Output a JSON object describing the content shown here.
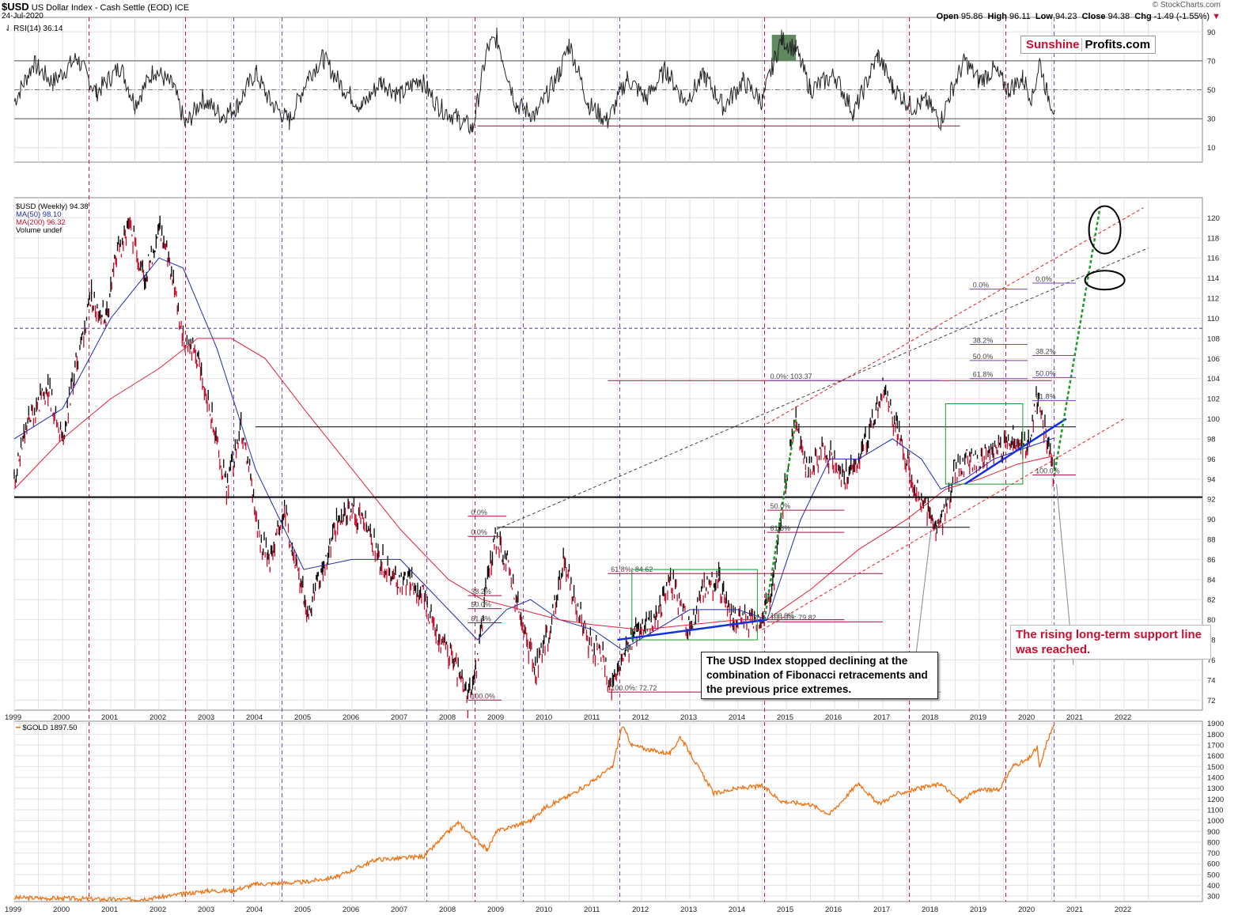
{
  "header": {
    "symbol": "$USD",
    "name": "US Dollar Index - Cash Settle (EOD)",
    "exchange": "ICE",
    "date": "24-Jul-2020",
    "open_label": "Open",
    "open": "95.86",
    "high_label": "High",
    "high": "96.11",
    "low_label": "Low",
    "low": "94.23",
    "close_label": "Close",
    "close": "94.38",
    "chg_label": "Chg",
    "chg": "-1.49 (-1.55%)",
    "copyright": "© StockCharts.com"
  },
  "logo": {
    "part1": "Sunshine",
    "part2": "Profits.com"
  },
  "legend": {
    "rsi": "RSI(14) 36.14",
    "usd": "$USD (Weekly) 94.38",
    "ma50": "MA(50) 98.10",
    "ma200": "MA(200) 96.32",
    "volume": "Volume undef",
    "gold": "$GOLD 1897.50"
  },
  "colors": {
    "usd_candle": "#000000",
    "usd_down": "#c8102e",
    "ma50": "#1f2bb0",
    "ma200": "#e0203a",
    "gold": "#f07010",
    "rsi_fill": "#5f8a5f",
    "vline_red": "#c8102e",
    "vline_purple": "#7a3fb8",
    "trend_blue": "#1030e0",
    "trend_red_dash": "#e02020",
    "trend_green_dash": "#1a9a2a"
  },
  "callouts": {
    "fib_note": "The USD Index stopped declining at the combination of Fibonacci retracements and the previous price extremes.",
    "support_note": "The rising long-term support line was reached."
  },
  "chart_data": [
    {
      "type": "line",
      "title": "RSI(14) 36.14",
      "series": [
        {
          "name": "RSI(14)",
          "values_note": ""
        }
      ],
      "ylim": [
        0,
        100
      ],
      "y_ticks": [
        "10",
        "30",
        "50",
        "70",
        "90"
      ],
      "reference_lines": [
        30,
        50,
        70
      ],
      "x_ticks": [
        "1999",
        "2000",
        "2001",
        "2002",
        "2003",
        "2004",
        "2005",
        "2006",
        "2007",
        "2008",
        "2009",
        "2010",
        "2011",
        "2012",
        "2013",
        "2014",
        "2015",
        "2016",
        "2017",
        "2018",
        "2019",
        "2020",
        "2021",
        "2022"
      ],
      "points": [
        [
          1999.0,
          42
        ],
        [
          1999.4,
          68
        ],
        [
          1999.8,
          55
        ],
        [
          2000.3,
          72
        ],
        [
          2000.7,
          48
        ],
        [
          2001.2,
          66
        ],
        [
          2001.5,
          40
        ],
        [
          2001.9,
          64
        ],
        [
          2002.3,
          52
        ],
        [
          2002.55,
          25
        ],
        [
          2002.9,
          44
        ],
        [
          2003.3,
          32
        ],
        [
          2003.6,
          38
        ],
        [
          2004.0,
          62
        ],
        [
          2004.3,
          42
        ],
        [
          2004.7,
          28
        ],
        [
          2005.1,
          60
        ],
        [
          2005.4,
          72
        ],
        [
          2005.8,
          52
        ],
        [
          2006.2,
          38
        ],
        [
          2006.6,
          56
        ],
        [
          2007.0,
          46
        ],
        [
          2007.4,
          58
        ],
        [
          2007.8,
          38
        ],
        [
          2008.2,
          30
        ],
        [
          2008.5,
          23
        ],
        [
          2008.8,
          78
        ],
        [
          2009.0,
          86
        ],
        [
          2009.4,
          40
        ],
        [
          2009.8,
          32
        ],
        [
          2010.3,
          62
        ],
        [
          2010.5,
          82
        ],
        [
          2010.9,
          40
        ],
        [
          2011.3,
          28
        ],
        [
          2011.7,
          58
        ],
        [
          2012.1,
          44
        ],
        [
          2012.5,
          64
        ],
        [
          2012.9,
          42
        ],
        [
          2013.3,
          60
        ],
        [
          2013.7,
          38
        ],
        [
          2014.1,
          56
        ],
        [
          2014.5,
          42
        ],
        [
          2014.7,
          65
        ],
        [
          2014.9,
          85
        ],
        [
          2015.2,
          78
        ],
        [
          2015.5,
          50
        ],
        [
          2016.0,
          60
        ],
        [
          2016.4,
          34
        ],
        [
          2016.9,
          74
        ],
        [
          2017.2,
          52
        ],
        [
          2017.6,
          38
        ],
        [
          2017.9,
          42
        ],
        [
          2018.2,
          28
        ],
        [
          2018.4,
          48
        ],
        [
          2018.7,
          70
        ],
        [
          2019.0,
          56
        ],
        [
          2019.3,
          64
        ],
        [
          2019.6,
          50
        ],
        [
          2019.9,
          58
        ],
        [
          2020.1,
          44
        ],
        [
          2020.25,
          70
        ],
        [
          2020.4,
          48
        ],
        [
          2020.56,
          36
        ]
      ]
    },
    {
      "type": "line",
      "title": "$USD (Weekly) 94.38",
      "series": [
        {
          "name": "$USD (Weekly)",
          "last": 94.38
        },
        {
          "name": "MA(50)",
          "last": 98.1
        },
        {
          "name": "MA(200)",
          "last": 96.32
        }
      ],
      "ylim": [
        71,
        122
      ],
      "y_ticks": [
        "72",
        "74",
        "76",
        "78",
        "80",
        "82",
        "84",
        "86",
        "88",
        "90",
        "92",
        "94",
        "96",
        "98",
        "100",
        "102",
        "104",
        "106",
        "108",
        "110",
        "112",
        "114",
        "116",
        "118",
        "120"
      ],
      "price_path": [
        [
          1999.0,
          94
        ],
        [
          1999.3,
          100
        ],
        [
          1999.7,
          103
        ],
        [
          2000.0,
          98
        ],
        [
          2000.3,
          106
        ],
        [
          2000.6,
          112
        ],
        [
          2000.9,
          110
        ],
        [
          2001.1,
          116
        ],
        [
          2001.4,
          119
        ],
        [
          2001.7,
          114
        ],
        [
          2002.0,
          119
        ],
        [
          2002.2,
          116
        ],
        [
          2002.5,
          108
        ],
        [
          2002.8,
          106
        ],
        [
          2003.1,
          100
        ],
        [
          2003.4,
          93
        ],
        [
          2003.7,
          99
        ],
        [
          2003.9,
          94
        ],
        [
          2004.1,
          88
        ],
        [
          2004.3,
          86
        ],
        [
          2004.6,
          91
        ],
        [
          2004.9,
          84
        ],
        [
          2005.1,
          81
        ],
        [
          2005.4,
          85
        ],
        [
          2005.7,
          90
        ],
        [
          2006.0,
          91
        ],
        [
          2006.3,
          89
        ],
        [
          2006.6,
          86
        ],
        [
          2006.9,
          84
        ],
        [
          2007.2,
          84
        ],
        [
          2007.5,
          82
        ],
        [
          2007.8,
          78
        ],
        [
          2008.1,
          76
        ],
        [
          2008.4,
          72
        ],
        [
          2008.6,
          76
        ],
        [
          2008.75,
          82
        ],
        [
          2008.95,
          88
        ],
        [
          2009.2,
          86
        ],
        [
          2009.5,
          80
        ],
        [
          2009.8,
          75
        ],
        [
          2010.1,
          79
        ],
        [
          2010.4,
          86
        ],
        [
          2010.6,
          82
        ],
        [
          2010.9,
          78
        ],
        [
          2011.2,
          76
        ],
        [
          2011.4,
          73
        ],
        [
          2011.6,
          76
        ],
        [
          2011.9,
          79
        ],
        [
          2012.3,
          80
        ],
        [
          2012.6,
          84
        ],
        [
          2013.0,
          79
        ],
        [
          2013.3,
          83
        ],
        [
          2013.6,
          84
        ],
        [
          2013.9,
          80
        ],
        [
          2014.3,
          80
        ],
        [
          2014.5,
          80
        ],
        [
          2014.75,
          84
        ],
        [
          2015.0,
          94
        ],
        [
          2015.2,
          100
        ],
        [
          2015.4,
          95
        ],
        [
          2015.8,
          97
        ],
        [
          2016.2,
          94
        ],
        [
          2016.5,
          96
        ],
        [
          2016.9,
          101
        ],
        [
          2017.0,
          103
        ],
        [
          2017.3,
          99
        ],
        [
          2017.6,
          94
        ],
        [
          2017.8,
          92
        ],
        [
          2018.1,
          89
        ],
        [
          2018.25,
          90
        ],
        [
          2018.5,
          95
        ],
        [
          2018.8,
          96
        ],
        [
          2019.1,
          96
        ],
        [
          2019.4,
          97
        ],
        [
          2019.7,
          98
        ],
        [
          2020.0,
          97
        ],
        [
          2020.2,
          102
        ],
        [
          2020.3,
          100
        ],
        [
          2020.45,
          97
        ],
        [
          2020.56,
          94.38
        ]
      ],
      "ma50_path": [
        [
          1999.0,
          98
        ],
        [
          2000.0,
          101
        ],
        [
          2001.0,
          110
        ],
        [
          2002.0,
          116
        ],
        [
          2002.5,
          115
        ],
        [
          2003.2,
          107
        ],
        [
          2004.0,
          95
        ],
        [
          2005.0,
          85
        ],
        [
          2006.0,
          86
        ],
        [
          2007.0,
          86
        ],
        [
          2008.0,
          81
        ],
        [
          2008.6,
          78
        ],
        [
          2009.2,
          81
        ],
        [
          2009.7,
          82
        ],
        [
          2010.3,
          80
        ],
        [
          2011.0,
          79
        ],
        [
          2011.6,
          77
        ],
        [
          2012.3,
          79
        ],
        [
          2013.0,
          81
        ],
        [
          2014.0,
          81
        ],
        [
          2014.6,
          80
        ],
        [
          2015.3,
          90
        ],
        [
          2015.9,
          96
        ],
        [
          2016.5,
          96
        ],
        [
          2017.2,
          98
        ],
        [
          2017.8,
          96
        ],
        [
          2018.2,
          93
        ],
        [
          2018.7,
          94
        ],
        [
          2019.3,
          96
        ],
        [
          2019.9,
          97
        ],
        [
          2020.56,
          98.1
        ]
      ],
      "ma200_path": [
        [
          1999.0,
          93
        ],
        [
          2000.0,
          98
        ],
        [
          2001.0,
          102
        ],
        [
          2002.0,
          105
        ],
        [
          2002.8,
          108
        ],
        [
          2003.5,
          108
        ],
        [
          2004.2,
          106
        ],
        [
          2005.0,
          101
        ],
        [
          2006.0,
          95
        ],
        [
          2007.0,
          89
        ],
        [
          2008.0,
          84
        ],
        [
          2008.7,
          82
        ],
        [
          2009.5,
          81
        ],
        [
          2010.3,
          80
        ],
        [
          2011.0,
          79.5
        ],
        [
          2012.0,
          79
        ],
        [
          2013.0,
          79.5
        ],
        [
          2014.0,
          80
        ],
        [
          2014.6,
          80
        ],
        [
          2015.5,
          83
        ],
        [
          2016.5,
          87
        ],
        [
          2017.5,
          90
        ],
        [
          2018.3,
          93
        ],
        [
          2019.0,
          94
        ],
        [
          2019.8,
          95.5
        ],
        [
          2020.56,
          96.32
        ]
      ],
      "fib_labels": [
        "0.0%",
        "38.2%",
        "50.0%",
        "61.8%",
        "100.0%",
        "61.8%: 84.62",
        "100.0%: 79.82",
        "100.0%: 72.72",
        "0.0%: 103.37",
        "0.0%",
        "38.2%",
        "50.0%",
        "61.8%",
        "0.0%",
        "38.2%",
        "50.0%",
        "61.8%",
        "100.0%"
      ],
      "horizontal_lines": [
        92.2,
        99.2,
        109.0,
        103.8
      ]
    },
    {
      "type": "line",
      "title": "$GOLD 1897.50",
      "series": [
        {
          "name": "$GOLD",
          "last": 1897.5
        }
      ],
      "ylim": [
        250,
        1920
      ],
      "y_ticks": [
        "300",
        "400",
        "500",
        "600",
        "700",
        "800",
        "900",
        "1000",
        "1100",
        "1200",
        "1300",
        "1400",
        "1500",
        "1600",
        "1700",
        "1800",
        "1900"
      ],
      "path": [
        [
          1999.0,
          285
        ],
        [
          2000.0,
          280
        ],
        [
          2001.0,
          270
        ],
        [
          2001.5,
          270
        ],
        [
          2002.0,
          290
        ],
        [
          2002.5,
          320
        ],
        [
          2003.0,
          350
        ],
        [
          2003.5,
          350
        ],
        [
          2004.0,
          410
        ],
        [
          2005.0,
          430
        ],
        [
          2005.7,
          480
        ],
        [
          2006.3,
          600
        ],
        [
          2006.5,
          640
        ],
        [
          2007.0,
          650
        ],
        [
          2007.5,
          670
        ],
        [
          2008.0,
          900
        ],
        [
          2008.2,
          980
        ],
        [
          2008.8,
          730
        ],
        [
          2009.0,
          900
        ],
        [
          2009.7,
          1000
        ],
        [
          2010.0,
          1120
        ],
        [
          2010.5,
          1230
        ],
        [
          2011.0,
          1370
        ],
        [
          2011.4,
          1500
        ],
        [
          2011.6,
          1880
        ],
        [
          2011.8,
          1700
        ],
        [
          2012.2,
          1650
        ],
        [
          2012.6,
          1620
        ],
        [
          2012.8,
          1780
        ],
        [
          2013.3,
          1400
        ],
        [
          2013.5,
          1250
        ],
        [
          2014.0,
          1300
        ],
        [
          2014.5,
          1320
        ],
        [
          2014.9,
          1180
        ],
        [
          2015.5,
          1150
        ],
        [
          2015.9,
          1060
        ],
        [
          2016.5,
          1350
        ],
        [
          2016.9,
          1150
        ],
        [
          2017.3,
          1250
        ],
        [
          2017.8,
          1300
        ],
        [
          2018.2,
          1340
        ],
        [
          2018.6,
          1180
        ],
        [
          2019.0,
          1290
        ],
        [
          2019.4,
          1280
        ],
        [
          2019.7,
          1510
        ],
        [
          2020.0,
          1560
        ],
        [
          2020.2,
          1680
        ],
        [
          2020.25,
          1480
        ],
        [
          2020.4,
          1730
        ],
        [
          2020.56,
          1897.5
        ]
      ]
    }
  ]
}
